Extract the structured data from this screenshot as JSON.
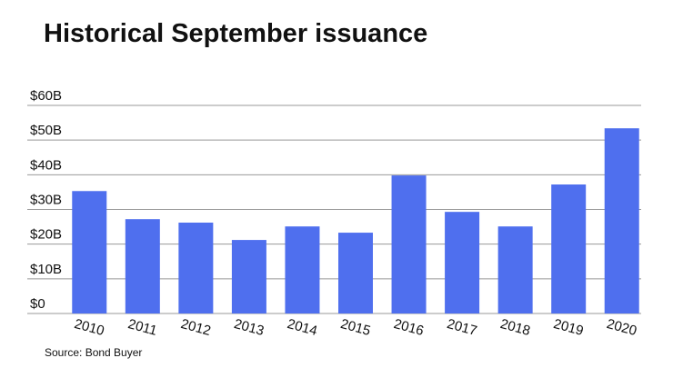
{
  "chart_data": {
    "type": "bar",
    "title": "Historical September issuance",
    "source": "Source: Bond Buyer",
    "categories": [
      "2010",
      "2011",
      "2012",
      "2013",
      "2014",
      "2015",
      "2016",
      "2017",
      "2018",
      "2019",
      "2020"
    ],
    "values": [
      35.3,
      27.2,
      26.2,
      21.2,
      25.1,
      23.3,
      39.8,
      29.3,
      25.1,
      37.2,
      53.4
    ],
    "color": "#4f6fee",
    "ylim": [
      0,
      60
    ],
    "yticks": [
      {
        "value": 0,
        "label": "$0"
      },
      {
        "value": 10,
        "label": "$10B"
      },
      {
        "value": 20,
        "label": "$20B"
      },
      {
        "value": 30,
        "label": "$30B"
      },
      {
        "value": 40,
        "label": "$40B"
      },
      {
        "value": 50,
        "label": "$50B"
      },
      {
        "value": 60,
        "label": "$60B"
      }
    ],
    "grid": true
  }
}
